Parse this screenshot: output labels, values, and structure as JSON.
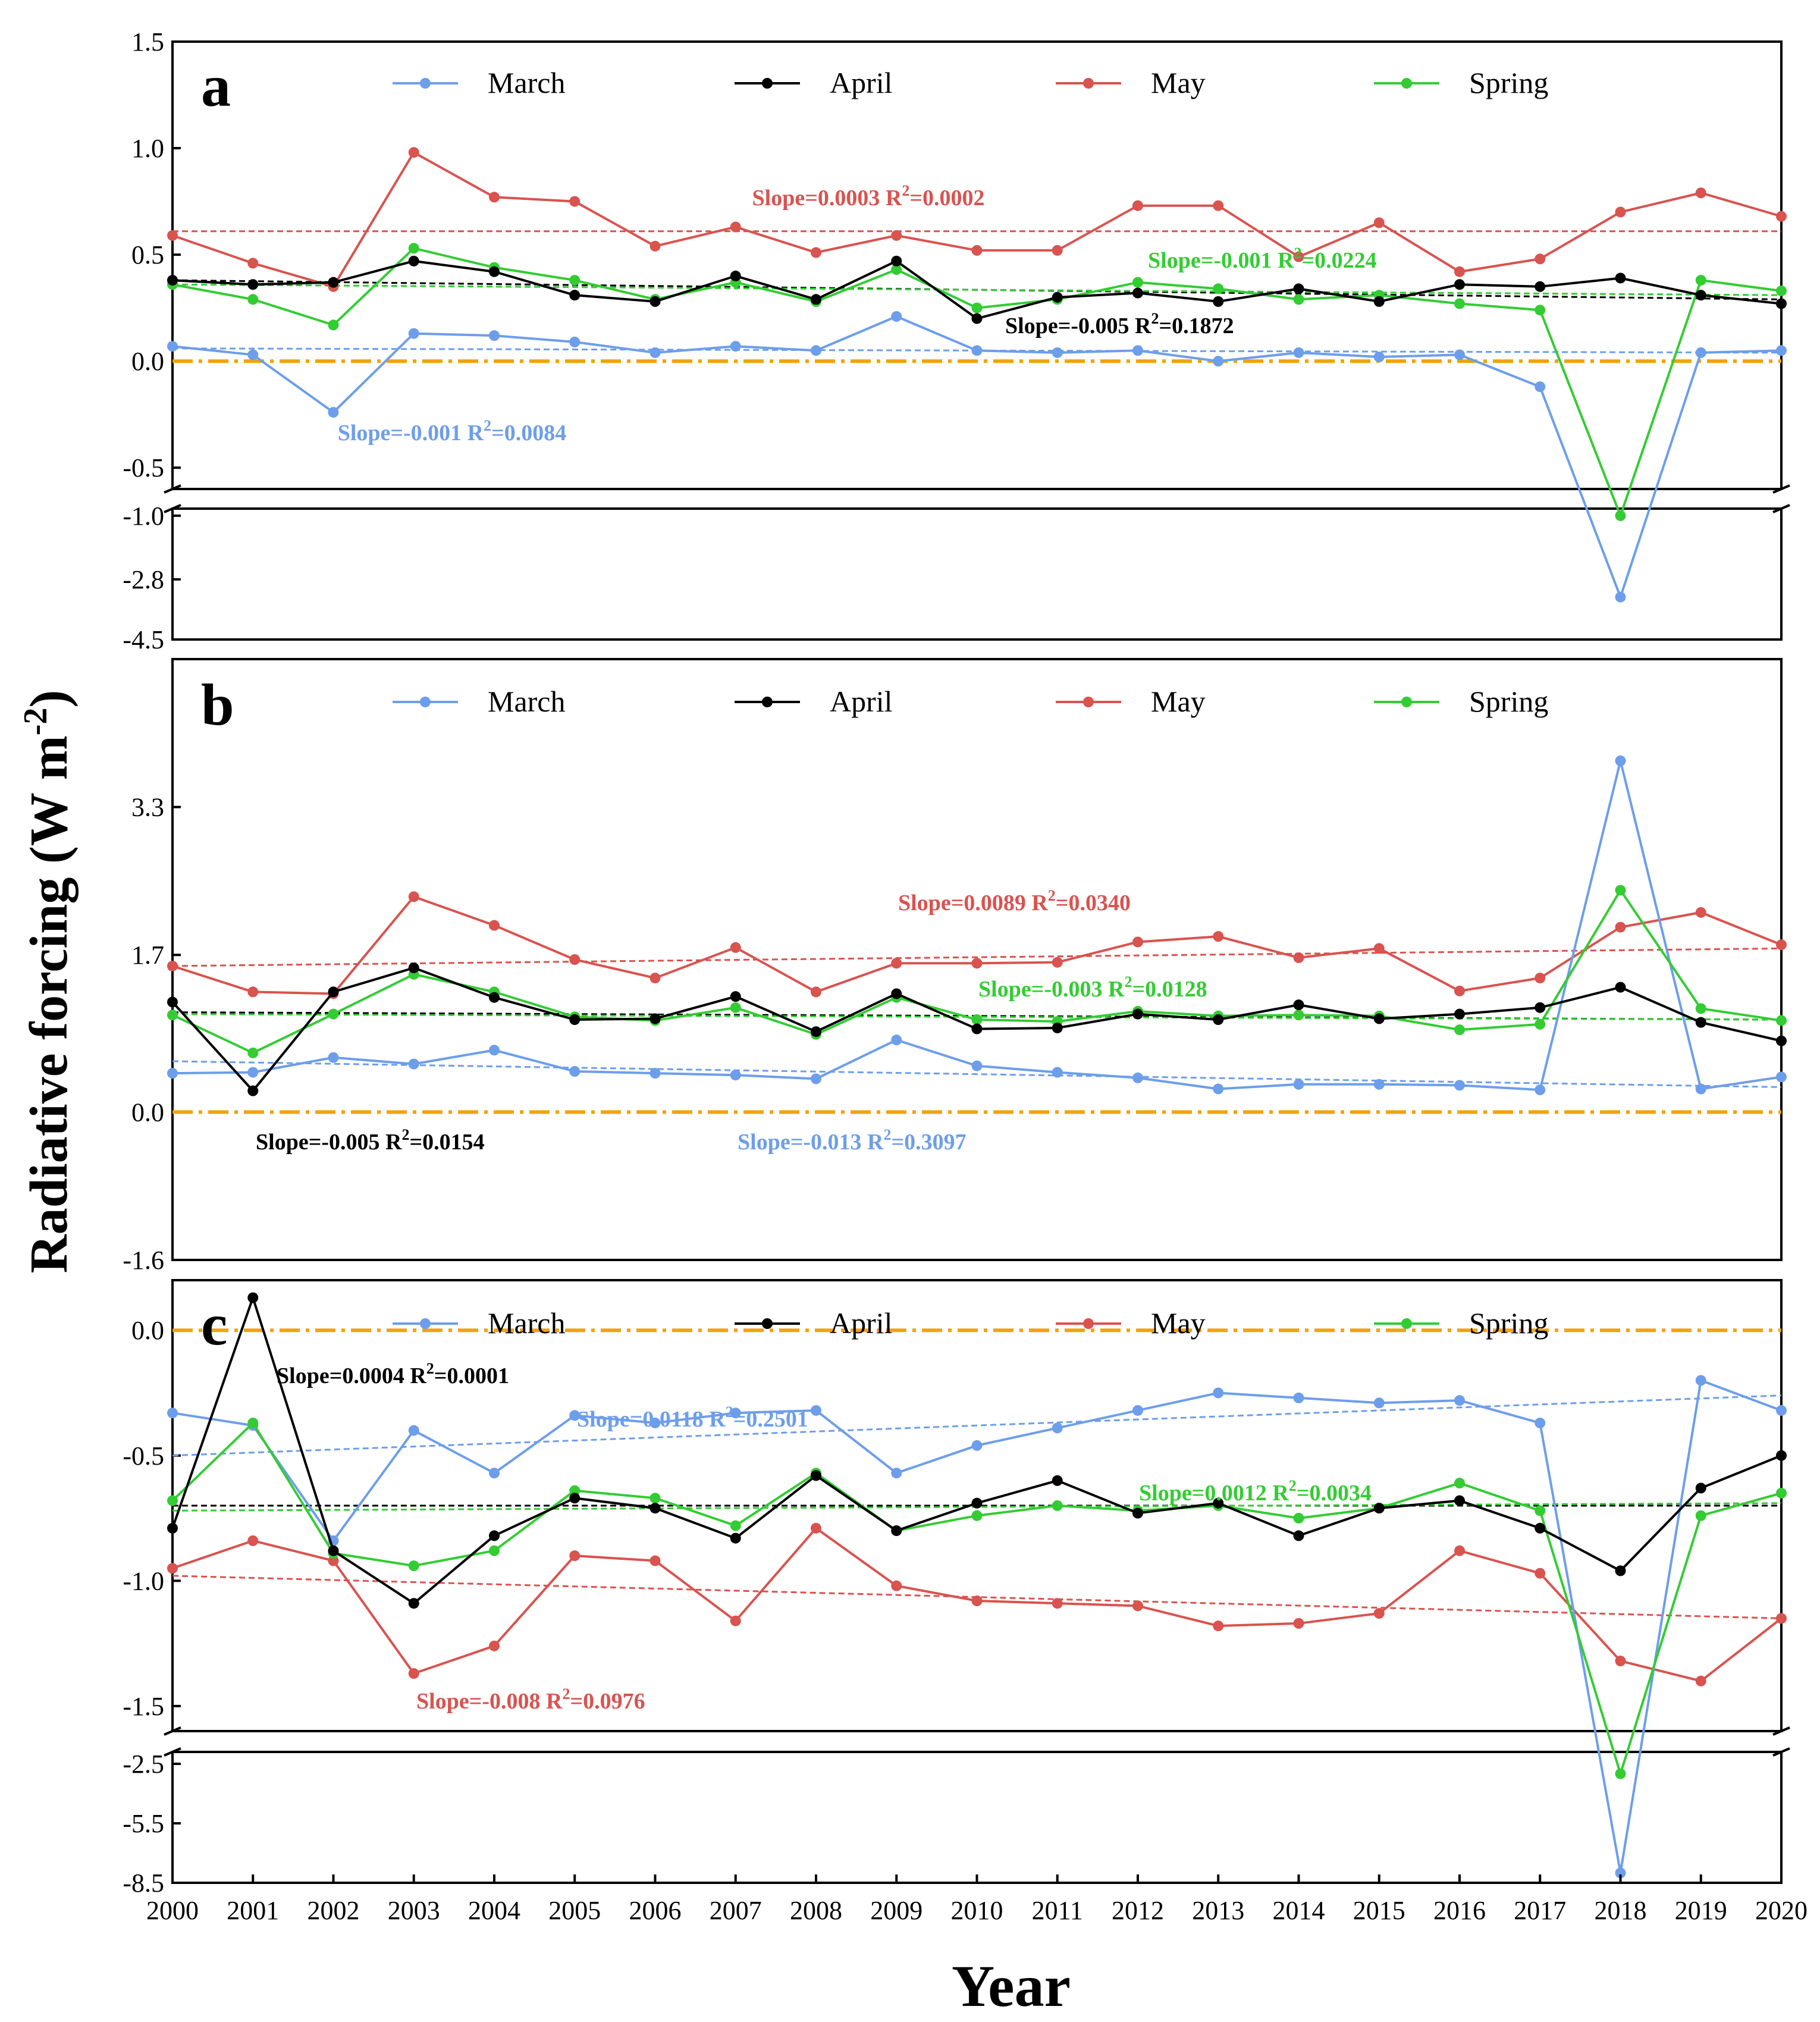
{
  "figure": {
    "ylabel_main": "Radiative forcing (W m",
    "ylabel_sup": "-2",
    "ylabel_close": ")",
    "xlabel": "Year",
    "years": [
      "2000",
      "2001",
      "2002",
      "2003",
      "2004",
      "2005",
      "2006",
      "2007",
      "2008",
      "2009",
      "2010",
      "2011",
      "2012",
      "2013",
      "2014",
      "2015",
      "2016",
      "2017",
      "2018",
      "2019",
      "2020"
    ],
    "legend": [
      "March",
      "April",
      "May",
      "Spring"
    ],
    "colors": {
      "March": "#6d9eeb",
      "April": "#000000",
      "May": "#d9534f",
      "Spring": "#33cc33",
      "zero": "#f0a30a"
    }
  },
  "chart_data": [
    {
      "type": "line",
      "panel": "a",
      "x": [
        2000,
        2001,
        2002,
        2003,
        2004,
        2005,
        2006,
        2007,
        2008,
        2009,
        2010,
        2011,
        2012,
        2013,
        2014,
        2015,
        2016,
        2017,
        2018,
        2019,
        2020
      ],
      "y_axis": "broken",
      "upper_ticks": [
        "1.5",
        "1.0",
        "0.5",
        "0.0",
        "-0.5"
      ],
      "lower_ticks": [
        "-1.0",
        "-2.8",
        "-4.5"
      ],
      "upper_range": [
        -0.6,
        1.5
      ],
      "lower_range": [
        -4.5,
        -0.8
      ],
      "zero_line": 0,
      "series": [
        {
          "name": "March",
          "values": [
            0.07,
            0.03,
            -0.24,
            0.13,
            0.12,
            0.09,
            0.04,
            0.07,
            0.05,
            0.21,
            0.05,
            0.04,
            0.05,
            0.0,
            0.04,
            0.02,
            0.03,
            -0.12,
            -3.3,
            0.04,
            0.05
          ],
          "trend": [
            0.06,
            0.04
          ],
          "label": "Slope=-0.001 R",
          "r2": "=0.0084"
        },
        {
          "name": "April",
          "values": [
            0.38,
            0.36,
            0.37,
            0.47,
            0.42,
            0.31,
            0.28,
            0.4,
            0.29,
            0.47,
            0.2,
            0.3,
            0.32,
            0.28,
            0.34,
            0.28,
            0.36,
            0.35,
            0.39,
            0.31,
            0.27
          ],
          "trend": [
            0.38,
            0.29
          ],
          "label": "Slope=-0.005 R",
          "r2": "=0.1872"
        },
        {
          "name": "May",
          "values": [
            0.59,
            0.46,
            0.35,
            0.98,
            0.77,
            0.75,
            0.54,
            0.63,
            0.51,
            0.59,
            0.52,
            0.52,
            0.73,
            0.73,
            0.49,
            0.65,
            0.42,
            0.48,
            0.7,
            0.79,
            0.68
          ],
          "trend": [
            0.61,
            0.61
          ],
          "label": "Slope=0.0003 R",
          "r2": "=0.0002"
        },
        {
          "name": "Spring",
          "values": [
            0.36,
            0.29,
            0.17,
            0.53,
            0.44,
            0.38,
            0.29,
            0.37,
            0.28,
            0.43,
            0.25,
            0.29,
            0.37,
            0.34,
            0.29,
            0.31,
            0.27,
            0.24,
            -1.0,
            0.38,
            0.33
          ],
          "trend": [
            0.36,
            0.31
          ],
          "label": "Slope=-0.001 R",
          "r2": "=0.0224"
        }
      ]
    },
    {
      "type": "line",
      "panel": "b",
      "x": [
        2000,
        2001,
        2002,
        2003,
        2004,
        2005,
        2006,
        2007,
        2008,
        2009,
        2010,
        2011,
        2012,
        2013,
        2014,
        2015,
        2016,
        2017,
        2018,
        2019,
        2020
      ],
      "y_axis": "linear",
      "ticks": [
        "3.3",
        "1.7",
        "0.0",
        "-1.6"
      ],
      "ylim": [
        -1.6,
        4.9
      ],
      "zero_line": 0,
      "series": [
        {
          "name": "March",
          "values": [
            0.42,
            0.43,
            0.59,
            0.52,
            0.67,
            0.44,
            0.42,
            0.4,
            0.36,
            0.78,
            0.5,
            0.43,
            0.37,
            0.25,
            0.3,
            0.3,
            0.29,
            0.24,
            3.8,
            0.25,
            0.38
          ],
          "trend": [
            0.55,
            0.27
          ],
          "label": "Slope=-0.013 R",
          "r2": "=0.3097"
        },
        {
          "name": "April",
          "values": [
            1.19,
            0.23,
            1.3,
            1.56,
            1.24,
            1.0,
            1.01,
            1.25,
            0.87,
            1.28,
            0.9,
            0.91,
            1.06,
            1.0,
            1.16,
            1.01,
            1.06,
            1.13,
            1.35,
            0.97,
            0.77
          ],
          "trend": [
            1.08,
            1.0
          ],
          "label": "Slope=-0.005 R",
          "r2": "=0.0154"
        },
        {
          "name": "May",
          "values": [
            1.58,
            1.3,
            1.28,
            2.33,
            2.02,
            1.65,
            1.45,
            1.78,
            1.3,
            1.61,
            1.61,
            1.62,
            1.84,
            1.9,
            1.67,
            1.77,
            1.31,
            1.45,
            2.0,
            2.16,
            1.81
          ],
          "trend": [
            1.58,
            1.77
          ],
          "label": "Slope=0.0089 R",
          "r2": "=0.0340"
        },
        {
          "name": "Spring",
          "values": [
            1.05,
            0.64,
            1.06,
            1.49,
            1.3,
            1.03,
            0.99,
            1.13,
            0.84,
            1.24,
            1.0,
            0.98,
            1.09,
            1.04,
            1.05,
            1.04,
            0.89,
            0.95,
            2.4,
            1.12,
            0.99
          ],
          "trend": [
            1.06,
            1.0
          ],
          "label": "Slope=-0.003 R",
          "r2": "=0.0128"
        }
      ]
    },
    {
      "type": "line",
      "panel": "c",
      "x": [
        2000,
        2001,
        2002,
        2003,
        2004,
        2005,
        2006,
        2007,
        2008,
        2009,
        2010,
        2011,
        2012,
        2013,
        2014,
        2015,
        2016,
        2017,
        2018,
        2019,
        2020
      ],
      "y_axis": "broken",
      "upper_ticks": [
        "0.0",
        "-0.5",
        "-1.0",
        "-1.5"
      ],
      "lower_ticks": [
        "-2.5",
        "-5.5",
        "-8.5"
      ],
      "upper_range": [
        -1.6,
        0.2
      ],
      "lower_range": [
        -8.5,
        -1.9
      ],
      "zero_line": 0,
      "series": [
        {
          "name": "March",
          "values": [
            -0.33,
            -0.38,
            -0.84,
            -0.4,
            -0.57,
            -0.34,
            -0.37,
            -0.33,
            -0.32,
            -0.57,
            -0.46,
            -0.39,
            -0.32,
            -0.25,
            -0.27,
            -0.29,
            -0.28,
            -0.37,
            -8.0,
            -0.2,
            -0.32
          ],
          "trend": [
            -0.5,
            -0.26
          ],
          "label": "Slope=0.0118 R",
          "r2": "=0.2501"
        },
        {
          "name": "April",
          "values": [
            -0.79,
            0.13,
            -0.88,
            -1.09,
            -0.82,
            -0.67,
            -0.71,
            -0.83,
            -0.58,
            -0.8,
            -0.69,
            -0.6,
            -0.73,
            -0.69,
            -0.82,
            -0.71,
            -0.68,
            -0.79,
            -0.96,
            -0.63,
            -0.5
          ],
          "trend": [
            -0.7,
            -0.7
          ],
          "label": "Slope=0.0004 R",
          "r2": "=0.0001"
        },
        {
          "name": "May",
          "values": [
            -0.95,
            -0.84,
            -0.92,
            -1.37,
            -1.26,
            -0.9,
            -0.92,
            -1.16,
            -0.79,
            -1.02,
            -1.08,
            -1.09,
            -1.1,
            -1.18,
            -1.17,
            -1.13,
            -0.88,
            -0.97,
            -1.32,
            -1.4,
            -1.15
          ],
          "trend": [
            -0.98,
            -1.15
          ],
          "label": "Slope=-0.008 R",
          "r2": "=0.0976"
        },
        {
          "name": "Spring",
          "values": [
            -0.68,
            -0.37,
            -0.89,
            -0.94,
            -0.88,
            -0.64,
            -0.67,
            -0.78,
            -0.57,
            -0.8,
            -0.74,
            -0.7,
            -0.72,
            -0.7,
            -0.75,
            -0.71,
            -0.61,
            -0.72,
            -3.0,
            -0.74,
            -0.65
          ],
          "trend": [
            -0.72,
            -0.69
          ],
          "label": "Slope=0.0012 R",
          "r2": "=0.0034"
        }
      ]
    }
  ]
}
